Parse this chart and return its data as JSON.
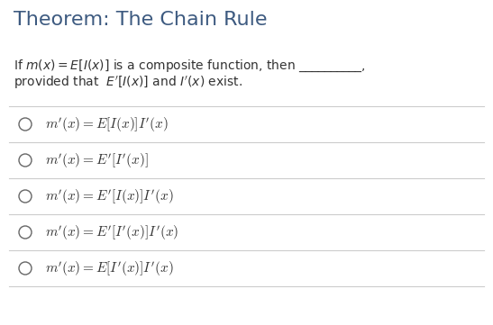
{
  "title": "Theorem: The Chain Rule",
  "title_color": "#3d5a80",
  "title_fontsize": 16,
  "background_color": "#ffffff",
  "intro_line1": "If $m(x) = E[I(x)]$ is a composite function, then __________,",
  "intro_line2": "provided that  $E'[I(x)]$ and $I'(x)$ exist.",
  "options": [
    "$m'(x) = E[I(x)]I'(x)$",
    "$m'(x) = E'[I'(x)]$",
    "$m'(x) = E'[I(x)]I'(x)$",
    "$m'(x) = E'[I'(x)]I'(x)$",
    "$m'(x) = E[I'(x)]I'(x)$"
  ],
  "divider_color": "#cccccc",
  "text_color": "#333333",
  "circle_color": "#666666",
  "option_fontsize": 11,
  "intro_fontsize": 10
}
